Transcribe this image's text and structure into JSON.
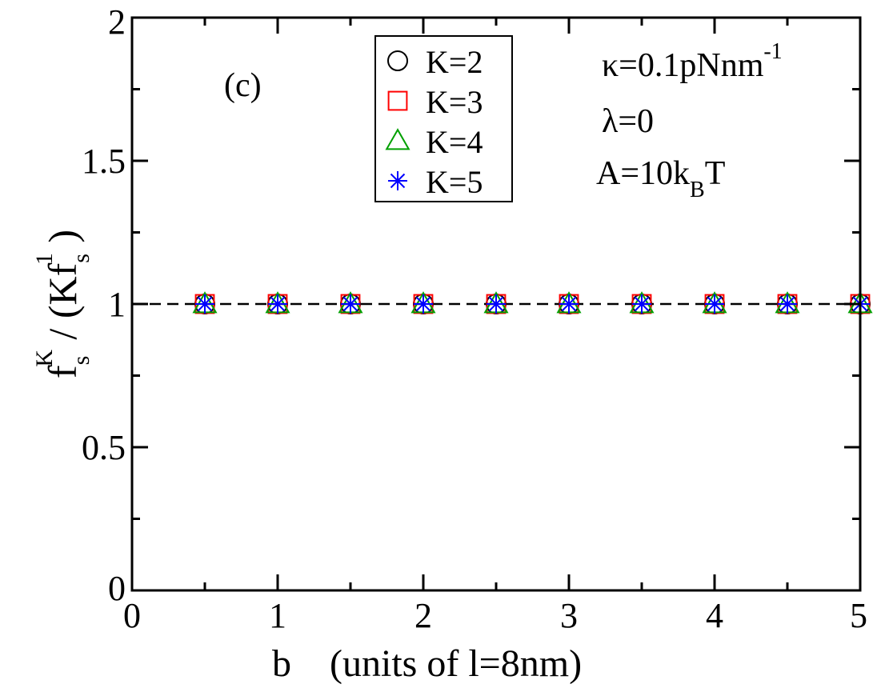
{
  "chart_data": {
    "type": "scatter",
    "panel_label": "(c)",
    "xlabel": "b    (units of l=8nm)",
    "ylabel": "f_s^K / (Kf_s^1)",
    "xlim": [
      0,
      5
    ],
    "ylim": [
      0,
      2
    ],
    "x_ticks": [
      "0",
      "1",
      "2",
      "3",
      "4",
      "5"
    ],
    "y_ticks": [
      "0",
      "0.5",
      "1",
      "1.5",
      "2"
    ],
    "grid": false,
    "legend_position": "top-center",
    "reference_line": {
      "y": 1,
      "style": "dashed"
    },
    "x": [
      0.5,
      1.0,
      1.5,
      2.0,
      2.5,
      3.0,
      3.5,
      4.0,
      4.5,
      5.0
    ],
    "series": [
      {
        "name": "K=2",
        "marker": "circle",
        "color": "#000000",
        "values": [
          1,
          1,
          1,
          1,
          1,
          1,
          1,
          1,
          1,
          1
        ]
      },
      {
        "name": "K=3",
        "marker": "square",
        "color": "#ff0000",
        "values": [
          1,
          1,
          1,
          1,
          1,
          1,
          1,
          1,
          1,
          1
        ]
      },
      {
        "name": "K=4",
        "marker": "triangle",
        "color": "#00a000",
        "values": [
          1,
          1,
          1,
          1,
          1,
          1,
          1,
          1,
          1,
          1
        ]
      },
      {
        "name": "K=5",
        "marker": "asterisk",
        "color": "#0000ff",
        "values": [
          1,
          1,
          1,
          1,
          1,
          1,
          1,
          1,
          1,
          1
        ]
      }
    ],
    "annotations": {
      "kappa": {
        "symbol": "κ",
        "text": "=0.1pNnm",
        "sup": "-1"
      },
      "lambda": {
        "symbol": "λ",
        "text": "=0"
      },
      "amplitude": {
        "text": "A=10k",
        "sub": "B",
        "suffix": "T"
      }
    }
  }
}
